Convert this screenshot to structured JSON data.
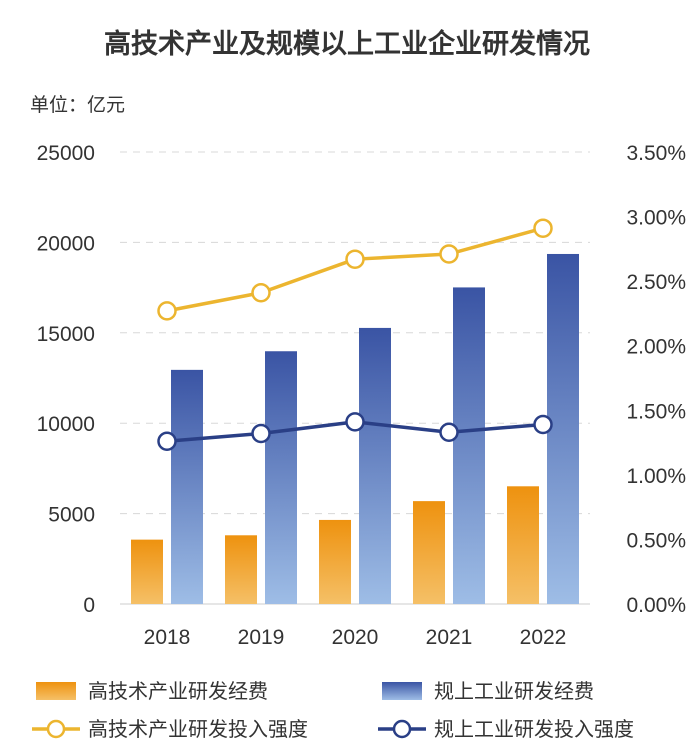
{
  "chart_data": {
    "type": "bar",
    "title": "高技术产业及规模以上工业企业研发情况",
    "unit_label": "单位：亿元",
    "categories": [
      "2018",
      "2019",
      "2020",
      "2021",
      "2022"
    ],
    "y_left": {
      "min": 0,
      "max": 25000,
      "ticks": [
        "0",
        "5000",
        "10000",
        "15000",
        "20000",
        "25000"
      ]
    },
    "y_right": {
      "min": 0,
      "max": 3.5,
      "ticks": [
        "0.00%",
        "0.50%",
        "1.00%",
        "1.50%",
        "2.00%",
        "2.50%",
        "3.00%",
        "3.50%"
      ]
    },
    "grid": true,
    "legend_position": "bottom",
    "series": [
      {
        "name": "高技术产业研发经费",
        "kind": "bar",
        "axis": "left",
        "color": "#f0a02a",
        "values": [
          3560,
          3800,
          4650,
          5690,
          6510
        ]
      },
      {
        "name": "规上工业研发经费",
        "kind": "bar",
        "axis": "left",
        "color": "#3d5aa8",
        "values": [
          12950,
          13980,
          15270,
          17510,
          19360
        ]
      },
      {
        "name": "高技术产业研发投入强度",
        "kind": "line",
        "axis": "right",
        "color": "#ecb52f",
        "values": [
          2.27,
          2.41,
          2.67,
          2.71,
          2.91
        ]
      },
      {
        "name": "规上工业研发投入强度",
        "kind": "line",
        "axis": "right",
        "color": "#2a3f86",
        "values": [
          1.26,
          1.32,
          1.41,
          1.33,
          1.39
        ]
      }
    ]
  }
}
